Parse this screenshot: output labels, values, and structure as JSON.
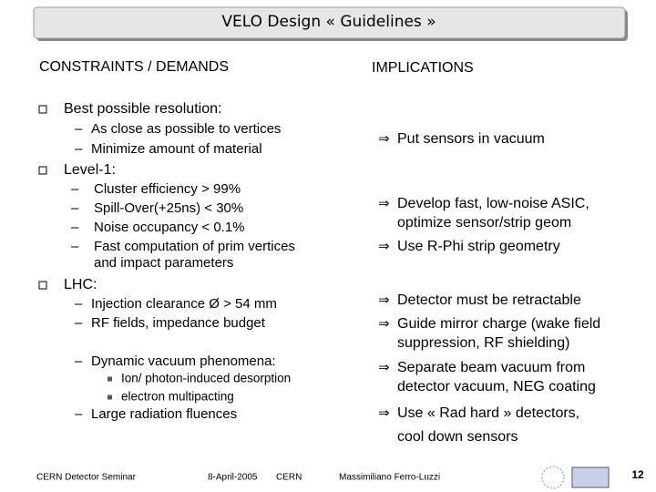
{
  "title": "VELO Design « Guidelines »",
  "columns": {
    "left": "CONSTRAINTS / DEMANDS",
    "right": "IMPLICATIONS"
  },
  "constraints": [
    {
      "heading": "Best possible resolution:",
      "items": [
        {
          "lines": [
            "As close as possible to vertices"
          ]
        },
        {
          "lines": [
            "Minimize amount of material"
          ]
        }
      ]
    },
    {
      "heading": "Level-1:",
      "items": [
        {
          "lines": [
            "Cluster efficiency > 99%"
          ]
        },
        {
          "lines": [
            "Spill-Over(+25ns) < 30%"
          ]
        },
        {
          "lines": [
            "Noise occupancy < 0.1%"
          ]
        },
        {
          "lines": [
            "Fast computation of prim vertices",
            "and impact parameters"
          ]
        }
      ]
    },
    {
      "heading": "LHC:",
      "items": [
        {
          "lines": [
            "Injection clearance Ø > 54 mm"
          ]
        },
        {
          "lines": [
            "RF fields, impedance budget"
          ]
        },
        {
          "lines": [
            "Dynamic vacuum phenomena:"
          ],
          "sub": [
            "Ion/ photon-induced desorption",
            "electron multipacting"
          ]
        },
        {
          "lines": [
            "Large radiation fluences"
          ]
        }
      ]
    }
  ],
  "implications": [
    {
      "lines": [
        "Put sensors in vacuum"
      ]
    },
    {
      "lines": [
        "Develop fast, low-noise ASIC,",
        "optimize sensor/strip geom"
      ]
    },
    {
      "lines": [
        "Use R-Phi strip geometry"
      ]
    },
    {
      "lines": [
        "Detector must be retractable"
      ]
    },
    {
      "lines": [
        "Guide mirror charge (wake field",
        "suppression, RF shielding)"
      ]
    },
    {
      "lines": [
        "Separate beam vacuum from",
        "detector vacuum, NEG coating"
      ]
    },
    {
      "lines": [
        "Use « Rad hard » detectors,",
        "cool down sensors"
      ]
    }
  ],
  "footer": {
    "event": "CERN Detector Seminar",
    "date": "8-April-2005",
    "place": "CERN",
    "author": "Massimiliano Ferro-Luzzi",
    "page": "12"
  }
}
